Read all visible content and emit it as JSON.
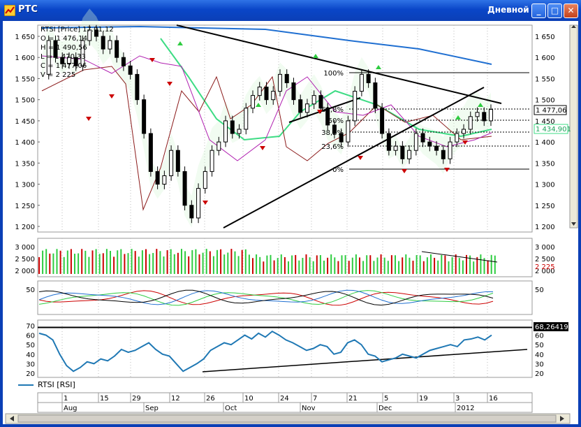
{
  "window": {
    "title": "РТС",
    "period_label": "Дневной",
    "min_label": "_",
    "max_label": "□",
    "close_label": "✕"
  },
  "info": {
    "name_line": "RTSI [Price] 17.01.12",
    "o_line": "O = 1 476,14",
    "h_line": "H = 1 490,56",
    "l_line": "L = 1 470,33",
    "c_line": "C = 1 477,06",
    "v_line": "V = 2 225"
  },
  "price_axis": {
    "ticks": [
      "1 650",
      "1 600",
      "1 550",
      "1 500",
      "1 450",
      "1 400",
      "1 350",
      "1 300",
      "1 250",
      "1 200"
    ],
    "last_price": "1 477,06",
    "indicator_value": "1 434,901"
  },
  "volume_axis": {
    "ticks": [
      "3 000",
      "2 500",
      "2 000"
    ],
    "last_volume": "2 225"
  },
  "osc_axis": {
    "ticks": [
      "50"
    ]
  },
  "rsi_axis": {
    "ticks": [
      "70",
      "60",
      "50",
      "40",
      "30",
      "20"
    ],
    "level": "68,26419"
  },
  "fib": {
    "labels": [
      "100%",
      "61,8%",
      "50%",
      "38,2%",
      "23,6%",
      "0%"
    ]
  },
  "legend": {
    "label": "RTSI [RSI]"
  },
  "time_axis": {
    "days": [
      "1",
      "15",
      "29",
      "12",
      "26",
      "10",
      "24",
      "7",
      "21",
      "5",
      "19",
      "3",
      "16"
    ],
    "months": [
      "Aug",
      "Sep",
      "Oct",
      "Nov",
      "Dec",
      "2012"
    ]
  },
  "colors": {
    "up": "#2ecc40",
    "down": "#cc0000",
    "ma_long": "#1f6fd1",
    "ma_mid": "#3ddc84",
    "rsi": "#1f78b4"
  }
}
